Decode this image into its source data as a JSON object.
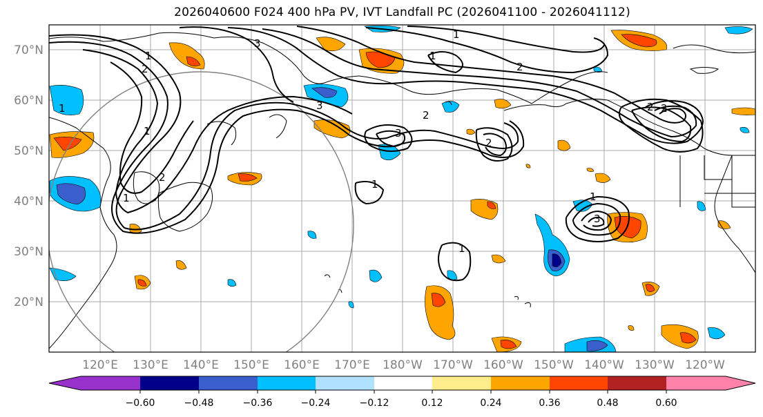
{
  "title": "2026040600 F024 400 hPa PV, IVT Landfall PC (2026041100 - 2026041112)",
  "lat_labels": [
    "70°N",
    "60°N",
    "50°N",
    "40°N",
    "30°N",
    "20°N"
  ],
  "lon_labels": [
    "120°E",
    "130°E",
    "140°E",
    "150°E",
    "160°E",
    "170°E",
    "180°W",
    "170°W",
    "160°W",
    "150°W",
    "140°W",
    "130°W",
    "120°W"
  ],
  "contour_labels": [
    "1",
    "2",
    "3",
    "1",
    "2",
    "2",
    "1",
    "3",
    "2",
    "1",
    "1",
    "3",
    "1",
    "2",
    "2",
    "3",
    "1",
    "1",
    "2",
    "1"
  ],
  "colorbar": {
    "ticks": [
      "−0.60",
      "−0.48",
      "−0.36",
      "−0.24",
      "−0.12",
      "0.12",
      "0.24",
      "0.36",
      "0.48",
      "0.60"
    ],
    "colors": [
      "#9932cc",
      "#00008b",
      "#3a5fcd",
      "#00bfff",
      "#b0e2ff",
      "#ffffff",
      "#ffec8b",
      "#ffa500",
      "#ff4500",
      "#b22222",
      "#ff82ab"
    ]
  }
}
